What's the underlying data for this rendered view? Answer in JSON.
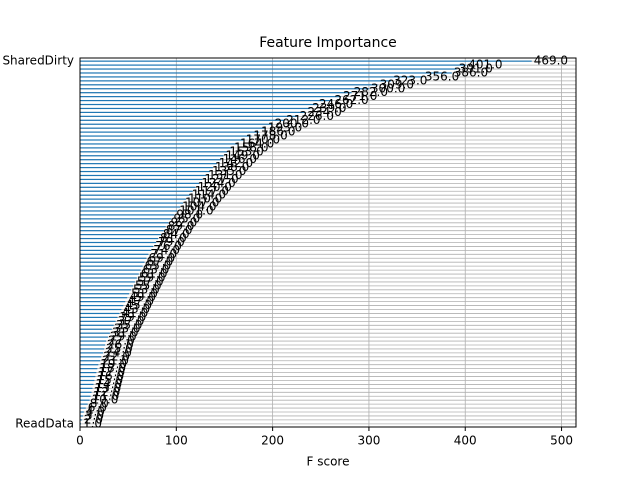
{
  "chart_data": {
    "type": "barh",
    "title": "Feature Importance",
    "xlabel": "F score",
    "categories": [
      "SharedDirty",
      null,
      null,
      null,
      null,
      null,
      null,
      null,
      null,
      null,
      null,
      null,
      null,
      null,
      null,
      null,
      null,
      null,
      null,
      null,
      null,
      null,
      null,
      null,
      null,
      null,
      null,
      null,
      null,
      null,
      null,
      null,
      null,
      null,
      null,
      null,
      null,
      null,
      null,
      null,
      null,
      null,
      null,
      null,
      null,
      null,
      null,
      null,
      null,
      null,
      null,
      null,
      null,
      null,
      null,
      null,
      null,
      null,
      null,
      null,
      null,
      null,
      null,
      null,
      null,
      null,
      null,
      null,
      null,
      null,
      null,
      null,
      null,
      null,
      null,
      null,
      null,
      null,
      null,
      null,
      null,
      null,
      null,
      null,
      null,
      null,
      null,
      null,
      null,
      null,
      null,
      null,
      "ReadData"
    ],
    "values": [
      469,
      401,
      391,
      386,
      356,
      323,
      309,
      300,
      282,
      271,
      262,
      246,
      239,
      234,
      226,
      212,
      200,
      193,
      186,
      178,
      170,
      164,
      158,
      153,
      149,
      146,
      142,
      138,
      135,
      131,
      127,
      124,
      120,
      117,
      114,
      110,
      107,
      104,
      101,
      98,
      95,
      92,
      89,
      87,
      84,
      81,
      79,
      76,
      74,
      71,
      69,
      67,
      65,
      63,
      61,
      59,
      57,
      55,
      53,
      51,
      49,
      47,
      45,
      43,
      41,
      39,
      37,
      35,
      33,
      31,
      29,
      27,
      26,
      25,
      24,
      22,
      21,
      19,
      18,
      17,
      16,
      15,
      14,
      13,
      12,
      11,
      10,
      8,
      6,
      4,
      3,
      2,
      1
    ],
    "value_labels": [
      "469.0",
      "401.0",
      "391.0",
      "386.0",
      "356.0",
      "323.0",
      "309.0",
      "300.0",
      "282.0",
      "271.0",
      "262.0",
      "246.0",
      "239.0",
      "234.0",
      "226.0",
      "212.0",
      "200.0",
      "193.0",
      "186.0",
      "178.0",
      "170.0",
      "164.0",
      "158.0",
      "153.0",
      "149.0",
      "146.0",
      "142.0",
      "138.0",
      "135.0",
      "131.0",
      "127.0",
      "124.0",
      "120.0",
      "117.0",
      "114.0",
      "110.0",
      "107.0",
      "104.0",
      "101.0",
      "98.0",
      "95.0",
      "92.0",
      "89.0",
      "87.0",
      "84.0",
      "81.0",
      "79.0",
      "76.0",
      "74.0",
      "71.0",
      "69.0",
      "67.0",
      "65.0",
      "63.0",
      "61.0",
      "59.0",
      "57.0",
      "55.0",
      "53.0",
      "51.0",
      "49.0",
      "47.0",
      "45.0",
      "43.0",
      "41.0",
      "39.0",
      "37.0",
      "35.0",
      "33.0",
      "31.0",
      "29.0",
      "27.0",
      "26.0",
      "25.0",
      "24.0",
      "22.0",
      "21.0",
      "19.0",
      "18.0",
      "17.0",
      "16.0",
      "15.0",
      "14.0",
      "13.0",
      "12.0",
      "11.0",
      "10.0",
      "8.0",
      "6.0",
      "4.0",
      "3.0",
      "2.0",
      "1.0"
    ],
    "color": "#1f77b4",
    "xlim": [
      0,
      515
    ],
    "xticks": [
      0,
      100,
      200,
      300,
      400,
      500
    ],
    "grid": true
  }
}
